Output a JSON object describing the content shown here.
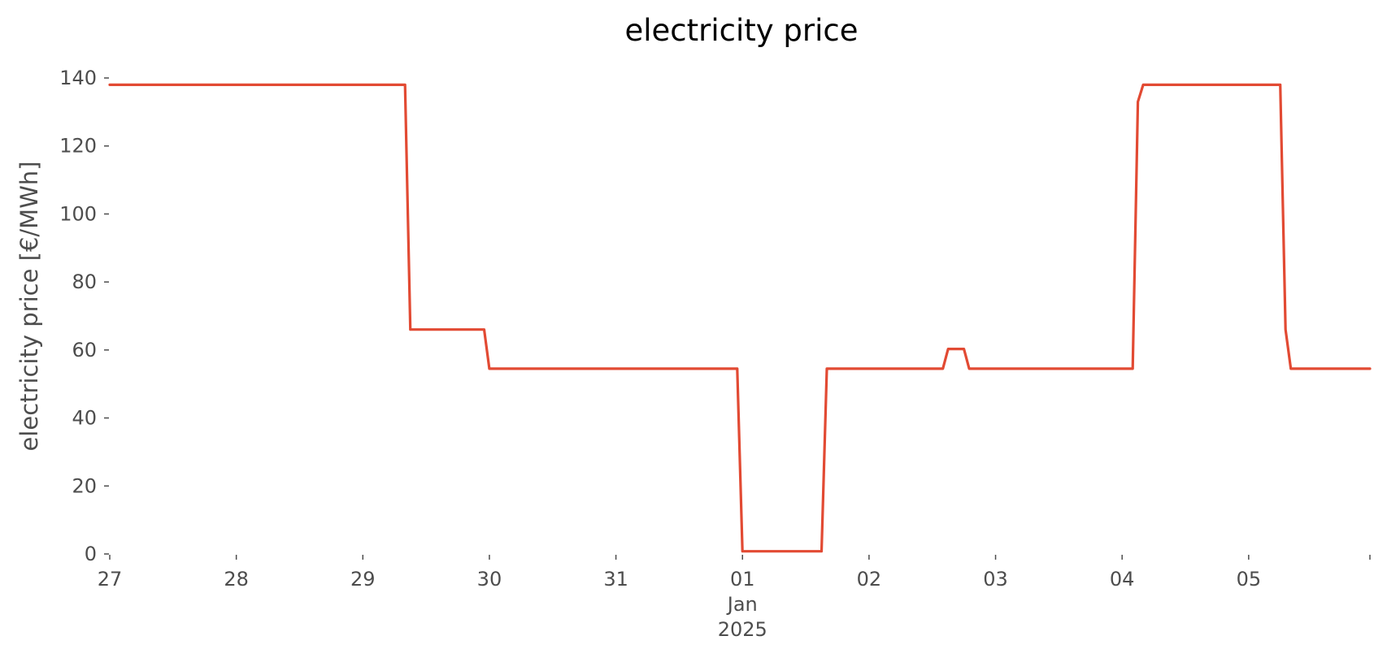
{
  "chart_data": {
    "type": "line",
    "title": "electricity price",
    "xlabel": "",
    "ylabel": "electricity price [€/MWh]",
    "ylim": [
      0,
      140
    ],
    "xlim": [
      "2024-12-27T00:00",
      "2025-01-05T23:00"
    ],
    "grid": false,
    "legend": "none",
    "yticks": [
      0,
      20,
      40,
      60,
      80,
      100,
      120,
      140
    ],
    "xticks": [
      {
        "date": "2024-12-27",
        "label": "27",
        "sub": []
      },
      {
        "date": "2024-12-28",
        "label": "28",
        "sub": []
      },
      {
        "date": "2024-12-29",
        "label": "29",
        "sub": []
      },
      {
        "date": "2024-12-30",
        "label": "30",
        "sub": []
      },
      {
        "date": "2024-12-31",
        "label": "31",
        "sub": []
      },
      {
        "date": "2025-01-01",
        "label": "01",
        "sub": [
          "Jan",
          "2025"
        ]
      },
      {
        "date": "2025-01-02",
        "label": "02",
        "sub": []
      },
      {
        "date": "2025-01-03",
        "label": "03",
        "sub": []
      },
      {
        "date": "2025-01-04",
        "label": "04",
        "sub": []
      },
      {
        "date": "2025-01-05",
        "label": "05",
        "sub": []
      }
    ],
    "series": [
      {
        "color": "#E24A33",
        "x": [
          "2024-12-27T00:00",
          "2024-12-29T08:00",
          "2024-12-29T09:00",
          "2024-12-29T23:00",
          "2024-12-30T00:00",
          "2024-12-31T23:00",
          "2025-01-01T00:00",
          "2025-01-01T15:00",
          "2025-01-01T16:00",
          "2025-01-02T14:00",
          "2025-01-02T15:00",
          "2025-01-02T18:00",
          "2025-01-02T19:00",
          "2025-01-04T02:00",
          "2025-01-04T03:00",
          "2025-01-04T04:00",
          "2025-01-05T06:00",
          "2025-01-05T07:00",
          "2025-01-05T08:00",
          "2025-01-05T23:00"
        ],
        "y": [
          138,
          138,
          66,
          66,
          54.5,
          54.5,
          0.8,
          0.8,
          54.5,
          54.5,
          60.3,
          60.3,
          54.5,
          54.5,
          133,
          138,
          138,
          66,
          54.5,
          54.5
        ]
      }
    ]
  }
}
